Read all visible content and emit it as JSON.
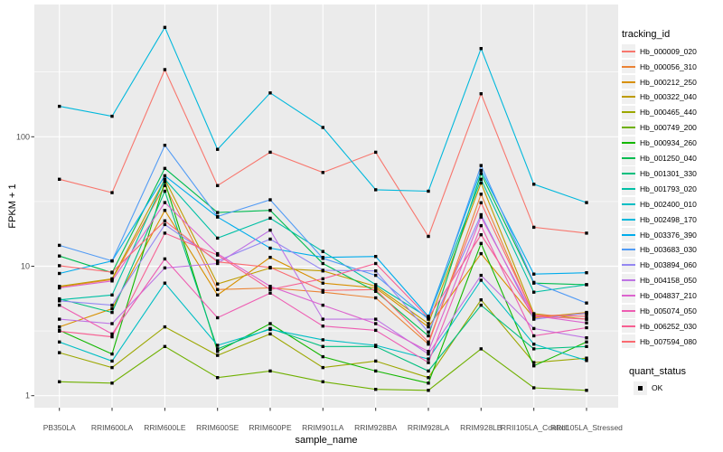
{
  "chart_data": {
    "type": "line",
    "title": "",
    "x_axis": {
      "label": "sample_name",
      "categories": [
        "PB350LA",
        "RRIM600LA",
        "RRIM600LE",
        "RRIM600SE",
        "RRIM600PE",
        "RRIM901LA",
        "RRIM928BA",
        "RRIM928LA",
        "RRIM928LB",
        "RRII105LA_Control",
        "RRII105LA_Stressed"
      ]
    },
    "y_axis": {
      "label": "FPKM + 1",
      "scale": "log10",
      "major_ticks": [
        1,
        10,
        100
      ],
      "minor_gridlines": [
        3.162,
        31.62,
        316.2
      ],
      "range": [
        0.65,
        1000
      ],
      "grid": true
    },
    "legend": {
      "position": "right",
      "tracking_title": "tracking_id",
      "quant_title": "quant_status",
      "quant_items": [
        "OK"
      ]
    },
    "point": {
      "shape": "filled-square",
      "color": "#000000"
    },
    "series": [
      {
        "name": "Hb_000009_020",
        "color": "#F8766D",
        "values": [
          47,
          37,
          330,
          42,
          76,
          53,
          76,
          17,
          215,
          20,
          18
        ]
      },
      {
        "name": "Hb_000056_310",
        "color": "#EB8335",
        "values": [
          6.9,
          7.9,
          42,
          6.6,
          6.8,
          6.3,
          5.7,
          2.5,
          36,
          4.1,
          4.3
        ]
      },
      {
        "name": "Hb_000212_250",
        "color": "#D89000",
        "values": [
          3.4,
          4.7,
          27,
          6,
          11.7,
          7.4,
          6.8,
          3.4,
          12.5,
          4,
          4.4
        ]
      },
      {
        "name": "Hb_000322_040",
        "color": "#BE9C00",
        "values": [
          7,
          8,
          47,
          7.3,
          9.7,
          9.2,
          7,
          3.6,
          44,
          4.3,
          3.9
        ]
      },
      {
        "name": "Hb_000465_440",
        "color": "#9CA700",
        "values": [
          2.15,
          1.65,
          3.4,
          2.05,
          3,
          1.65,
          1.85,
          1.38,
          5.5,
          1.8,
          1.95
        ]
      },
      {
        "name": "Hb_000749_200",
        "color": "#6FB000",
        "values": [
          1.28,
          1.25,
          2.4,
          1.38,
          1.55,
          1.28,
          1.12,
          1.1,
          2.3,
          1.15,
          1.1
        ]
      },
      {
        "name": "Hb_000934_260",
        "color": "#13B700",
        "values": [
          3.2,
          2.1,
          45,
          2.2,
          3.6,
          2,
          1.55,
          1.25,
          15,
          1.7,
          2.6
        ]
      },
      {
        "name": "Hb_001250_040",
        "color": "#00BC51",
        "values": [
          12,
          8.9,
          57,
          26,
          27,
          10.5,
          6.4,
          2.9,
          52,
          7.4,
          7.2
        ]
      },
      {
        "name": "Hb_001301_330",
        "color": "#00BF7F",
        "values": [
          5.6,
          4.4,
          38,
          2.3,
          3.3,
          2.4,
          2.4,
          1.55,
          5,
          2.3,
          2.4
        ]
      },
      {
        "name": "Hb_001793_020",
        "color": "#00C0A5",
        "values": [
          5.5,
          6,
          47,
          16.5,
          23.5,
          13,
          7.2,
          4,
          47,
          6.3,
          7.2
        ]
      },
      {
        "name": "Hb_002400_010",
        "color": "#00BEC4",
        "values": [
          2.6,
          1.85,
          7.4,
          2.45,
          3.25,
          2.7,
          2.45,
          1.92,
          7.8,
          2.5,
          1.87
        ]
      },
      {
        "name": "Hb_002498_170",
        "color": "#00B8DC",
        "values": [
          172,
          144,
          700,
          80,
          218,
          118,
          39,
          38,
          480,
          43,
          31
        ]
      },
      {
        "name": "Hb_003376_390",
        "color": "#00ACEC",
        "values": [
          8.8,
          11,
          50,
          24,
          13.8,
          11.7,
          11.9,
          4.1,
          55,
          8.7,
          8.9
        ]
      },
      {
        "name": "Hb_003683_030",
        "color": "#519BF5",
        "values": [
          14.5,
          11,
          86,
          24.2,
          32.6,
          11.5,
          8.5,
          3.9,
          60,
          7.5,
          5.2
        ]
      },
      {
        "name": "Hb_003894_060",
        "color": "#9487F2",
        "values": [
          5.4,
          5,
          21,
          11,
          16.2,
          9.3,
          9.2,
          3.1,
          25,
          3.9,
          4.35
        ]
      },
      {
        "name": "Hb_004158_050",
        "color": "#BE74E4",
        "values": [
          3.9,
          3.6,
          9.7,
          10.5,
          19,
          3.9,
          3.9,
          2.1,
          8.5,
          3.3,
          2.8
        ]
      },
      {
        "name": "Hb_004837_210",
        "color": "#DC64CE",
        "values": [
          6.8,
          7.7,
          31,
          12.5,
          7,
          5,
          3.6,
          2.2,
          24,
          4.15,
          3.65
        ]
      },
      {
        "name": "Hb_005074_050",
        "color": "#EE5DB2",
        "values": [
          5,
          3,
          11.4,
          4,
          6.2,
          3.45,
          3.2,
          1.8,
          20.6,
          2.9,
          3.35
        ]
      },
      {
        "name": "Hb_006252_030",
        "color": "#F75F92",
        "values": [
          3.15,
          2.85,
          18,
          12.2,
          6.6,
          8,
          10.5,
          4,
          17.5,
          4.1,
          3.9
        ]
      },
      {
        "name": "Hb_007594_080",
        "color": "#FA6A70",
        "values": [
          10.1,
          9,
          22.4,
          10.8,
          9.8,
          6.5,
          6.6,
          2.6,
          30.9,
          4.2,
          4.1
        ]
      }
    ]
  },
  "colors": {
    "panel": "#EBEBEB",
    "grid": "#FFFFFF",
    "tick_text": "#4D4D4D",
    "tick_mark": "#333333",
    "legend_key_fill": "#F0F0F0",
    "point": "#000000"
  }
}
